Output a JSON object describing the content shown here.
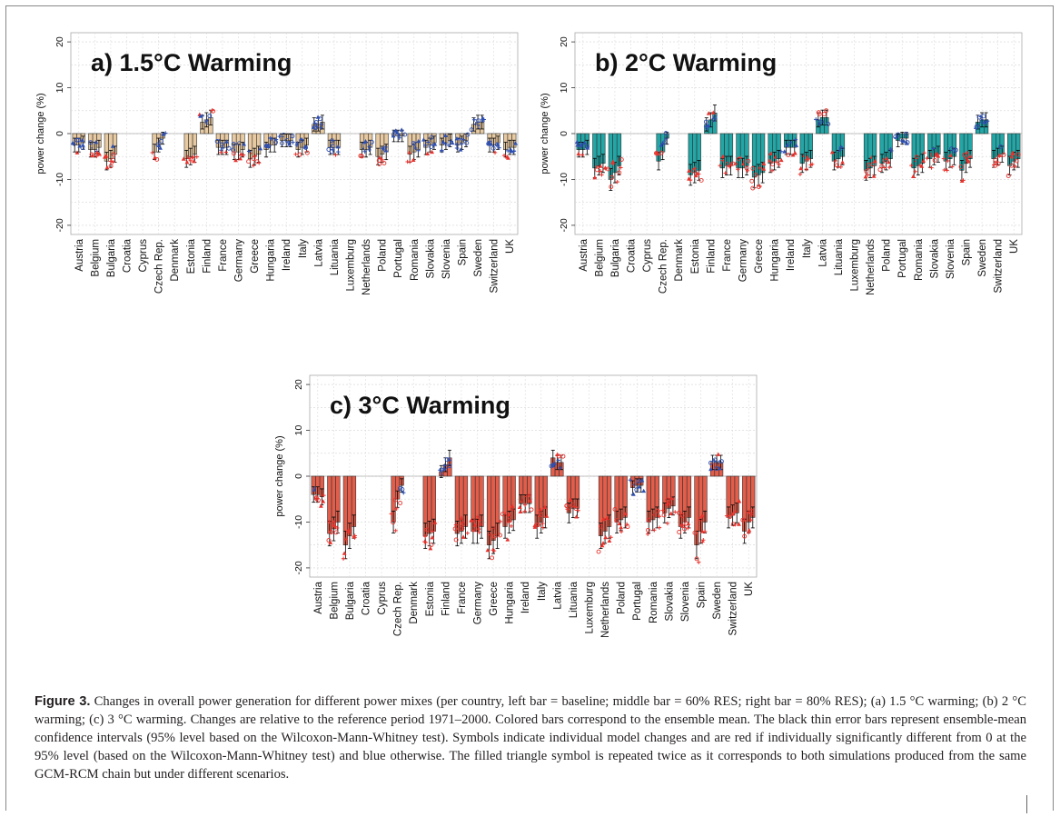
{
  "figure": {
    "label": "Figure 3.",
    "caption": "Changes in overall power generation for different power mixes (per country, left bar = baseline; middle bar = 60% RES; right bar = 80% RES); (a) 1.5 °C warming; (b) 2 °C warming; (c) 3 °C warming. Changes are relative to the reference period 1971–2000. Colored bars correspond to the ensemble mean. The black thin error bars represent ensemble-mean confidence intervals (95% level based on the Wilcoxon-Mann-Whitney test). Symbols indicate individual model changes and are red if individually significantly different from 0 at the 95% level (based on the Wilcoxon-Mann-Whitney test) and blue otherwise. The filled triangle symbol is repeated twice as it corresponds to both simulations produced from the same GCM-RCM chain but under different scenarios."
  },
  "colors": {
    "panel_a_bar": "#e7c9a2",
    "panel_b_bar": "#22a6a6",
    "panel_c_bar": "#e25d4a",
    "significant_symbol": "#e8322c",
    "nonsignificant_symbol": "#2f4fb0",
    "error_bar": "#000000"
  },
  "chart_data": [
    {
      "type": "bar",
      "title": "a) 1.5°C Warming",
      "ylabel": "power change (%)",
      "ylim": [
        -22,
        22
      ],
      "yticks": [
        "20",
        "10",
        "0",
        "-10",
        "-20"
      ],
      "grid": true,
      "categories": [
        "Austria",
        "Belgium",
        "Bulgaria",
        "Croatia",
        "Cyprus",
        "Czech Rep.",
        "Denmark",
        "Estonia",
        "Finland",
        "France",
        "Germany",
        "Greece",
        "Hungaria",
        "Ireland",
        "Italy",
        "Latvia",
        "Lituania",
        "Luxemburg",
        "Netherlands",
        "Poland",
        "Portugal",
        "Romania",
        "Slovakia",
        "Slovenia",
        "Spain",
        "Sweden",
        "Switzerland",
        "UK"
      ],
      "series": [
        {
          "values": [
            -2.5,
            -3.5,
            -6,
            null,
            null,
            -4,
            null,
            -5.5,
            2.5,
            -3,
            -4,
            -5.5,
            -3.5,
            -1.5,
            -3.5,
            2,
            -3,
            null,
            -3.5,
            -5,
            -0.5,
            -4.5,
            -3,
            -2.5,
            -2.5,
            2,
            -2.5,
            -3.5
          ]
        },
        {
          "values": [
            -2.5,
            -3.5,
            -5.5,
            null,
            null,
            -2.5,
            null,
            -5,
            3,
            -3,
            -4,
            -5,
            -2.5,
            -1.5,
            -3,
            2,
            -3,
            null,
            -3.5,
            -4.5,
            -0.5,
            -4,
            -2.5,
            -2,
            -2,
            2.5,
            -2.5,
            -3
          ]
        },
        {
          "values": [
            -2,
            -3,
            -4.5,
            null,
            null,
            -1,
            null,
            -4.5,
            3.5,
            -3,
            -3.5,
            -4.5,
            -2.5,
            -1.5,
            -2.5,
            2.5,
            -3,
            null,
            -3,
            -4,
            -0.5,
            -3.5,
            -2,
            -1.5,
            -1.5,
            2.5,
            -2,
            -3
          ]
        }
      ]
    },
    {
      "type": "bar",
      "title": "b) 2°C Warming",
      "ylabel": "power change (%)",
      "ylim": [
        -22,
        22
      ],
      "yticks": [
        "20",
        "10",
        "0",
        "-10",
        "-20"
      ],
      "grid": true,
      "categories": [
        "Austria",
        "Belgium",
        "Bulgaria",
        "Croatia",
        "Cyprus",
        "Czech Rep.",
        "Denmark",
        "Estonia",
        "Finland",
        "France",
        "Germany",
        "Greece",
        "Hungaria",
        "Ireland",
        "Italy",
        "Latvia",
        "Lituania",
        "Luxemburg",
        "Netherlands",
        "Poland",
        "Portugal",
        "Romania",
        "Slovakia",
        "Slovenia",
        "Spain",
        "Sweden",
        "Switzerland",
        "UK"
      ],
      "series": [
        {
          "values": [
            -3.5,
            -7.5,
            -10,
            null,
            null,
            -6,
            null,
            -9,
            2,
            -7.5,
            -7.5,
            -9.5,
            -6.5,
            -3,
            -6.5,
            3,
            -6,
            null,
            -8,
            -6.5,
            -1.5,
            -7.5,
            -5.5,
            -6,
            -8,
            2.5,
            -5.5,
            -7
          ]
        },
        {
          "values": [
            -3.5,
            -7,
            -8.5,
            null,
            null,
            -4,
            null,
            -8.5,
            3,
            -7,
            -7.5,
            -9,
            -6,
            -3,
            -6,
            3.5,
            -5.5,
            null,
            -7.5,
            -6,
            -1,
            -7,
            -5,
            -5.5,
            -6.5,
            3,
            -5,
            -6
          ]
        },
        {
          "values": [
            -3,
            -6.5,
            -7,
            null,
            null,
            -1,
            null,
            -8,
            4.5,
            -7,
            -7,
            -8.5,
            -5.5,
            -3,
            -5.5,
            3.5,
            -5,
            null,
            -7,
            -5.5,
            -1,
            -6.5,
            -4.5,
            -5,
            -5.5,
            3,
            -4.5,
            -5.5
          ]
        }
      ]
    },
    {
      "type": "bar",
      "title": "c) 3°C Warming",
      "ylabel": "power change (%)",
      "ylim": [
        -22,
        22
      ],
      "yticks": [
        "20",
        "10",
        "0",
        "-10",
        "-20"
      ],
      "grid": true,
      "categories": [
        "Austria",
        "Belgium",
        "Bulgaria",
        "Croatia",
        "Cyprus",
        "Czech Rep.",
        "Denmark",
        "Estonia",
        "Finland",
        "France",
        "Germany",
        "Greece",
        "Hungaria",
        "Ireland",
        "Italy",
        "Latvia",
        "Lituania",
        "Luxemburg",
        "Netherlands",
        "Poland",
        "Portugal",
        "Romania",
        "Slovakia",
        "Slovenia",
        "Spain",
        "Sweden",
        "Switzerland",
        "UK"
      ],
      "series": [
        {
          "values": [
            -4,
            -12.5,
            -15,
            null,
            null,
            -10,
            null,
            -13,
            1,
            -12.5,
            -12,
            -15,
            -11,
            -6,
            -11,
            4,
            -8,
            null,
            -13,
            -10,
            -2.5,
            -10,
            -8,
            -11,
            -15,
            3,
            -9,
            -12
          ]
        },
        {
          "values": [
            -4,
            -11.5,
            -13,
            null,
            null,
            -5,
            null,
            -12.5,
            2.5,
            -12,
            -12,
            -14,
            -10,
            -6,
            -10,
            3,
            -7,
            null,
            -12,
            -9.5,
            -2,
            -9.5,
            -7,
            -10,
            -12,
            3,
            -8.5,
            -10
          ]
        },
        {
          "values": [
            -4.5,
            -10,
            -11,
            null,
            null,
            -2,
            null,
            -12,
            4,
            -11,
            -11,
            -13,
            -9.5,
            -6,
            -9,
            3,
            -7,
            null,
            -11,
            -9,
            -2,
            -9,
            -6.5,
            -9,
            -10,
            3,
            -8,
            -9
          ]
        }
      ]
    }
  ]
}
